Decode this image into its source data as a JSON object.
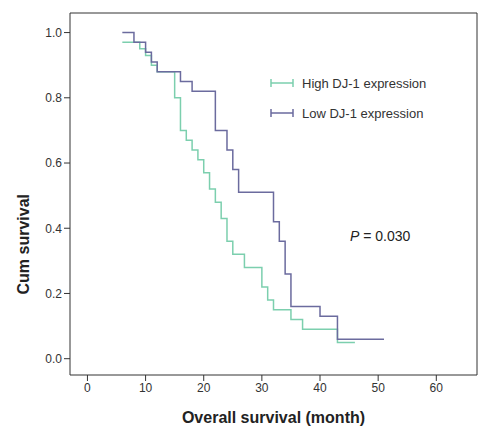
{
  "chart_data": {
    "type": "line",
    "x_label": "Overall survival (month)",
    "y_label": "Cum survival",
    "annotations": [
      "P = 0.030"
    ],
    "xlim": [
      -3,
      67
    ],
    "xticks": [
      0,
      10,
      20,
      30,
      40,
      50,
      60
    ],
    "ylim": [
      -0.05,
      1.06
    ],
    "yticks": [
      {
        "value": 0,
        "label": "0.0"
      },
      0.2,
      0.4,
      0.6,
      0.8,
      {
        "value": 1,
        "label": "1.0"
      }
    ],
    "legend": "upper right",
    "series": [
      {
        "name": "High DJ-1 expression",
        "color": "#7ccfae",
        "line_style": "step",
        "x": [
          6,
          9,
          10,
          11,
          12,
          15,
          16,
          17,
          18,
          19,
          20,
          21,
          22,
          23,
          24,
          25,
          27,
          30,
          31,
          32,
          35,
          37,
          43,
          46
        ],
        "values": [
          0.97,
          0.95,
          0.93,
          0.9,
          0.88,
          0.8,
          0.7,
          0.67,
          0.64,
          0.61,
          0.57,
          0.52,
          0.48,
          0.43,
          0.36,
          0.32,
          0.28,
          0.22,
          0.18,
          0.15,
          0.12,
          0.09,
          0.05,
          0.05
        ]
      },
      {
        "name": "Low DJ-1 expression",
        "color": "#6b6b9e",
        "line_style": "step",
        "x": [
          6,
          8,
          10,
          11,
          12,
          16,
          18,
          22,
          24,
          25,
          26,
          32,
          33,
          34,
          35,
          40,
          43,
          51
        ],
        "values": [
          1,
          0.97,
          0.94,
          0.91,
          0.88,
          0.85,
          0.82,
          0.7,
          0.64,
          0.58,
          0.51,
          0.42,
          0.36,
          0.26,
          0.16,
          0.13,
          0.06,
          0.06
        ]
      }
    ]
  }
}
